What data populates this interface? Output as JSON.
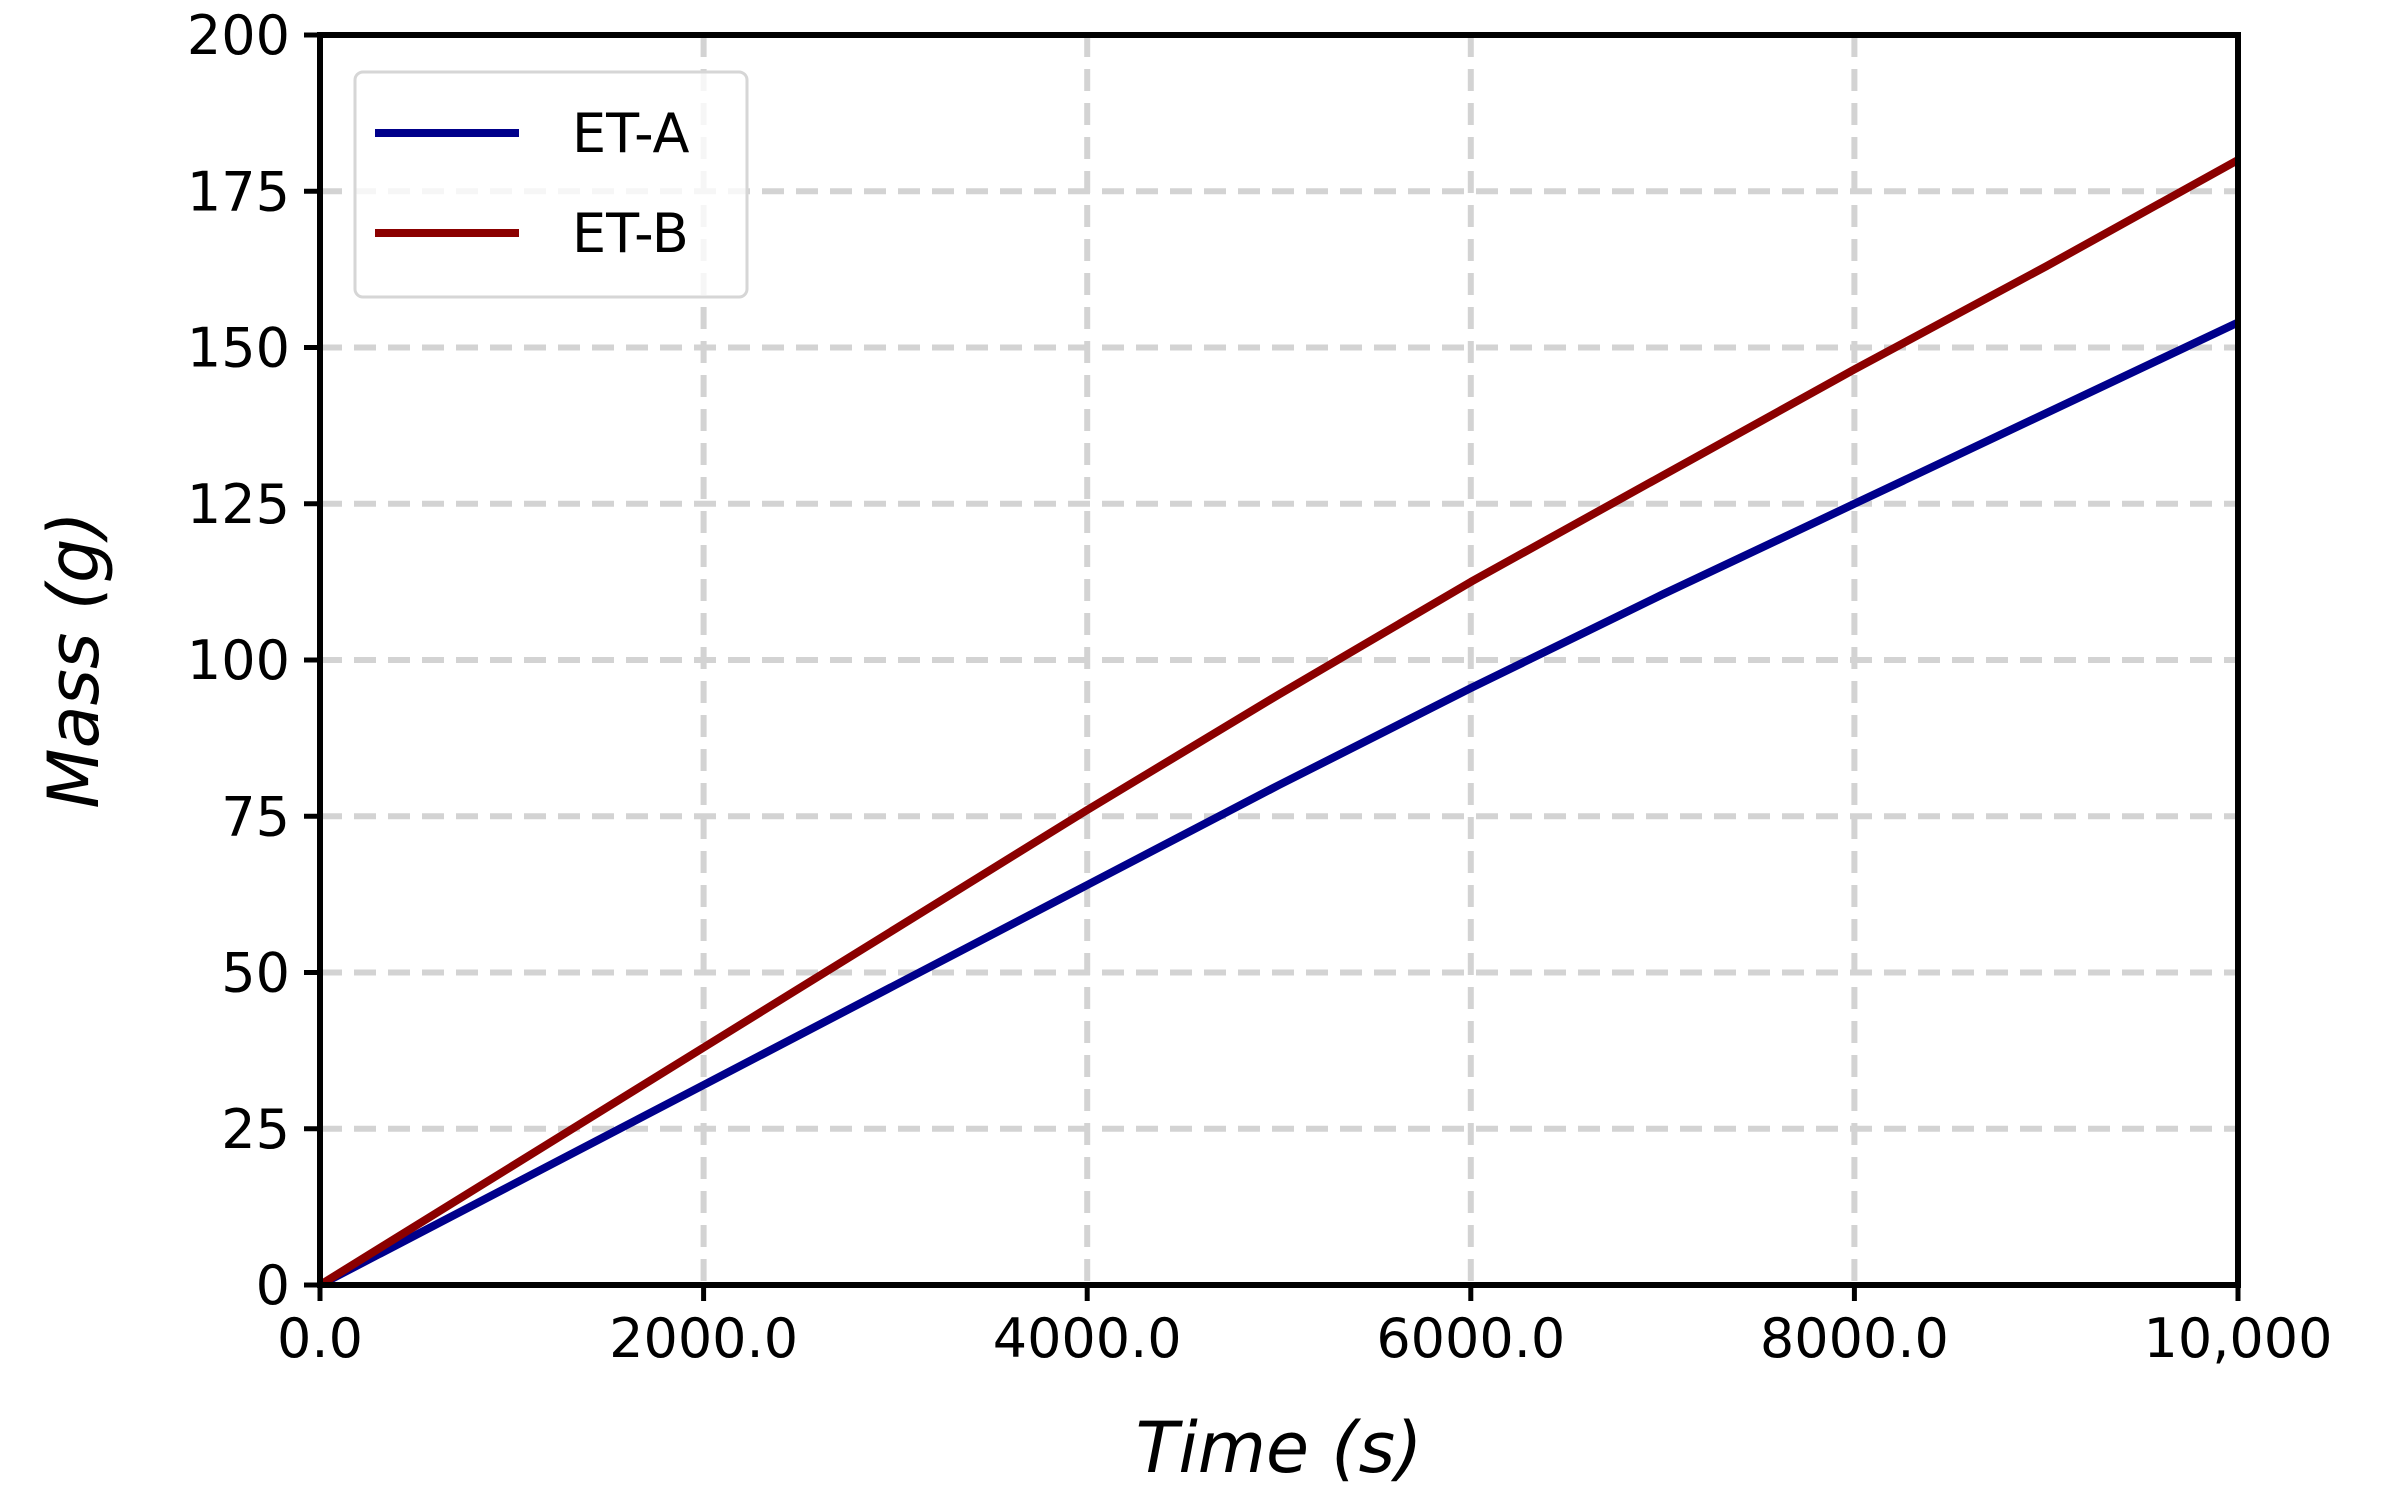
{
  "chart_data": {
    "type": "line",
    "title": "",
    "xlabel": "Time (s)",
    "ylabel": "Mass (g)",
    "xlim": [
      0,
      10000
    ],
    "ylim": [
      0,
      200
    ],
    "xticks": [
      0,
      2000,
      4000,
      6000,
      8000,
      10000
    ],
    "xtick_labels": [
      "0.0",
      "2000.0",
      "4000.0",
      "6000.0",
      "8000.0",
      "10,000"
    ],
    "yticks": [
      0,
      25,
      50,
      75,
      100,
      125,
      150,
      175,
      200
    ],
    "ytick_labels": [
      "0",
      "25",
      "50",
      "75",
      "100",
      "125",
      "150",
      "175",
      "200"
    ],
    "grid": true,
    "grid_style": "dashed",
    "legend_position": "upper-left",
    "x": [
      0,
      1000,
      2000,
      3000,
      4000,
      5000,
      6000,
      7000,
      8000,
      9000,
      10000
    ],
    "series": [
      {
        "name": "ET-A",
        "color": "#00008b",
        "values": [
          0,
          16,
          32,
          48,
          64,
          80,
          95.5,
          110.5,
          125,
          139.5,
          154
        ]
      },
      {
        "name": "ET-B",
        "color": "#8b0000",
        "values": [
          0,
          19,
          38,
          57,
          76,
          94.5,
          112.5,
          129.5,
          146.5,
          163,
          180
        ]
      }
    ]
  }
}
